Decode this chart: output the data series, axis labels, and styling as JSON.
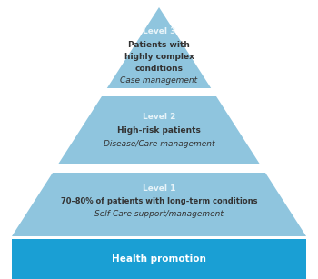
{
  "bg_color": "#ffffff",
  "pyramid_color": "#8fc5de",
  "banner_color": "#1a9fd4",
  "text_dark": "#333333",
  "text_white": "#ffffff",
  "text_level_white": "#e8f4f9",
  "level3": {
    "label": "Level 3",
    "line1": "Patients with",
    "line2": "highly complex",
    "line3": "conditions",
    "line4": "Case management"
  },
  "level2": {
    "label": "Level 2",
    "line1": "High-risk patients",
    "line2": "Disease/Care management"
  },
  "level1": {
    "label": "Level 1",
    "line1": "70–80% of patients with long-term conditions",
    "line2": "Self-Care support/management"
  },
  "banner_text": "Health promotion"
}
